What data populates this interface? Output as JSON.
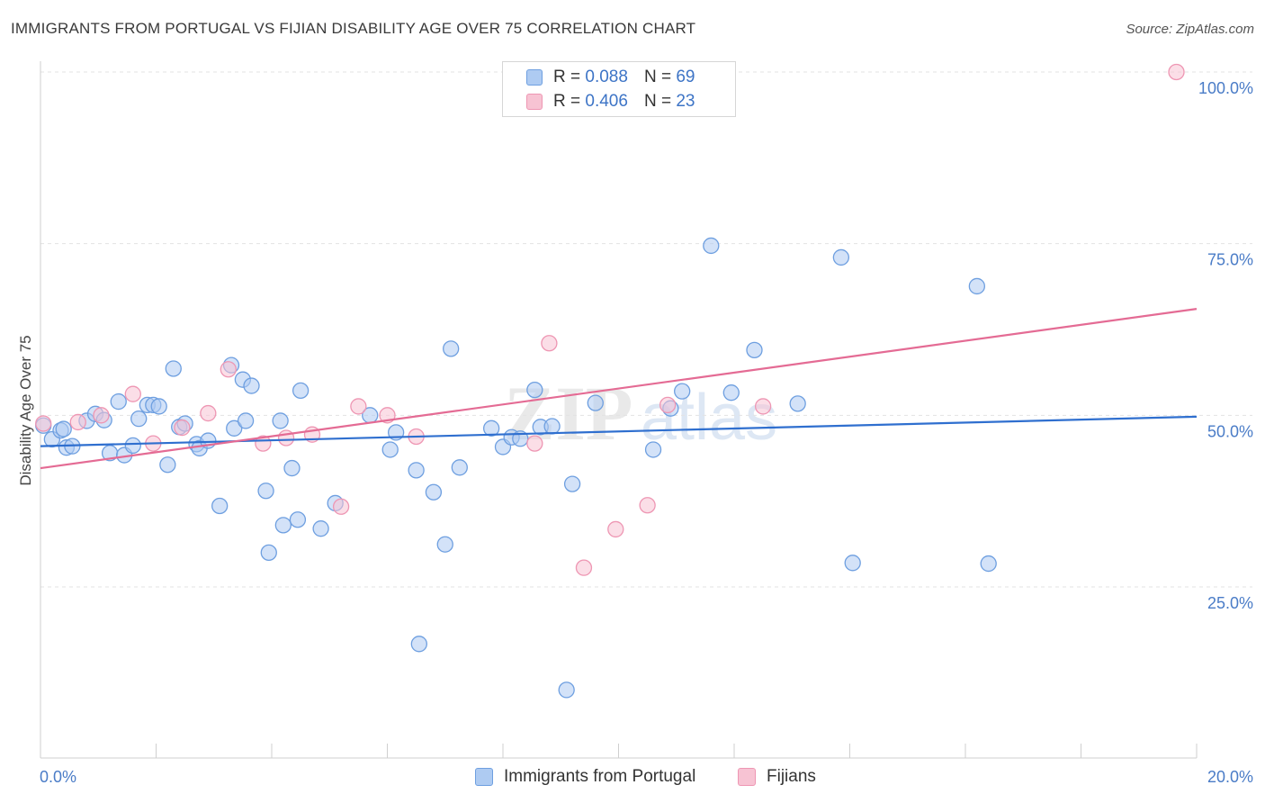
{
  "title": "IMMIGRANTS FROM PORTUGAL VS FIJIAN DISABILITY AGE OVER 75 CORRELATION CHART",
  "source": "Source: ZipAtlas.com",
  "watermark": "ZIPatlas",
  "colors": {
    "blue_fill": "#aecbf2",
    "blue_stroke": "#6e9fe0",
    "blue_line": "#2f6fcf",
    "pink_fill": "#f7c3d3",
    "pink_stroke": "#ee96b3",
    "pink_line": "#e46b94",
    "tick_text": "#4a7cc7",
    "grid": "#e3e3e3"
  },
  "legend": {
    "rows": [
      {
        "r_label": "R =",
        "r_value": "0.088",
        "n_label": "N =",
        "n_value": "69"
      },
      {
        "r_label": "R =",
        "r_value": "0.406",
        "n_label": "N =",
        "n_value": "23"
      }
    ]
  },
  "chart_data": {
    "type": "scatter",
    "title": "IMMIGRANTS FROM PORTUGAL VS FIJIAN DISABILITY AGE OVER 75 CORRELATION CHART",
    "xlabel": "",
    "ylabel": "Disability Age Over 75",
    "xlim": [
      0,
      20
    ],
    "ylim": [
      2,
      102
    ],
    "x_tick_labels": [
      "0.0%",
      "20.0%"
    ],
    "y_ticks": [
      25,
      50,
      75,
      100
    ],
    "y_tick_labels": [
      "25.0%",
      "50.0%",
      "75.0%",
      "100.0%"
    ],
    "grid": "horizontal dashed",
    "legend_position": "top-center",
    "series": [
      {
        "name": "Immigrants from Portugal",
        "trend": {
          "x0": 0,
          "y0": 45.5,
          "x1": 20,
          "y1": 49.8
        },
        "points": [
          [
            0.05,
            48.5
          ],
          [
            0.2,
            46.5
          ],
          [
            0.35,
            47.8
          ],
          [
            0.45,
            45.3
          ],
          [
            0.55,
            45.5
          ],
          [
            0.8,
            49.2
          ],
          [
            0.95,
            50.2
          ],
          [
            1.1,
            49.3
          ],
          [
            1.2,
            44.5
          ],
          [
            1.35,
            52.0
          ],
          [
            1.45,
            44.2
          ],
          [
            1.6,
            45.6
          ],
          [
            1.7,
            49.5
          ],
          [
            1.85,
            51.5
          ],
          [
            1.95,
            51.5
          ],
          [
            2.05,
            51.3
          ],
          [
            2.2,
            42.8
          ],
          [
            2.3,
            56.8
          ],
          [
            2.4,
            48.3
          ],
          [
            2.5,
            48.8
          ],
          [
            2.7,
            45.8
          ],
          [
            2.75,
            45.2
          ],
          [
            2.9,
            46.3
          ],
          [
            3.1,
            36.8
          ],
          [
            3.3,
            57.3
          ],
          [
            3.35,
            48.1
          ],
          [
            3.5,
            55.2
          ],
          [
            3.55,
            49.2
          ],
          [
            3.65,
            54.3
          ],
          [
            3.9,
            39.0
          ],
          [
            3.95,
            30.0
          ],
          [
            4.15,
            49.2
          ],
          [
            4.2,
            34.0
          ],
          [
            4.45,
            34.8
          ],
          [
            4.35,
            42.3
          ],
          [
            4.5,
            53.6
          ],
          [
            4.85,
            33.5
          ],
          [
            5.1,
            37.2
          ],
          [
            5.7,
            50.0
          ],
          [
            6.05,
            45.0
          ],
          [
            6.15,
            47.5
          ],
          [
            6.5,
            42.0
          ],
          [
            6.55,
            16.7
          ],
          [
            6.8,
            38.8
          ],
          [
            7.0,
            31.2
          ],
          [
            7.1,
            59.7
          ],
          [
            7.25,
            42.4
          ],
          [
            7.8,
            48.1
          ],
          [
            8.0,
            45.4
          ],
          [
            8.15,
            46.8
          ],
          [
            8.3,
            46.6
          ],
          [
            8.55,
            53.7
          ],
          [
            8.65,
            48.3
          ],
          [
            8.85,
            48.4
          ],
          [
            9.1,
            10.0
          ],
          [
            9.2,
            40.0
          ],
          [
            9.6,
            51.8
          ],
          [
            10.6,
            45.0
          ],
          [
            10.9,
            51.0
          ],
          [
            11.1,
            53.5
          ],
          [
            11.6,
            74.7
          ],
          [
            11.95,
            53.3
          ],
          [
            12.35,
            59.5
          ],
          [
            13.1,
            51.7
          ],
          [
            13.85,
            73.0
          ],
          [
            14.05,
            28.5
          ],
          [
            16.2,
            68.8
          ],
          [
            16.4,
            28.4
          ],
          [
            0.4,
            48.0
          ]
        ]
      },
      {
        "name": "Fijians",
        "trend": {
          "x0": 0,
          "y0": 42.3,
          "x1": 20,
          "y1": 65.5
        },
        "points": [
          [
            0.05,
            48.8
          ],
          [
            0.65,
            49.0
          ],
          [
            1.05,
            50.0
          ],
          [
            1.6,
            53.1
          ],
          [
            1.95,
            45.9
          ],
          [
            2.45,
            48.2
          ],
          [
            2.9,
            50.3
          ],
          [
            3.25,
            56.7
          ],
          [
            3.85,
            45.9
          ],
          [
            4.25,
            46.7
          ],
          [
            4.7,
            47.2
          ],
          [
            5.2,
            36.7
          ],
          [
            5.5,
            51.3
          ],
          [
            6.0,
            50.0
          ],
          [
            6.5,
            46.9
          ],
          [
            8.55,
            45.9
          ],
          [
            8.8,
            60.5
          ],
          [
            9.4,
            27.8
          ],
          [
            9.95,
            33.4
          ],
          [
            10.5,
            36.9
          ],
          [
            10.85,
            51.5
          ],
          [
            12.5,
            51.3
          ],
          [
            19.65,
            100.0
          ]
        ]
      }
    ]
  },
  "bottom_legend": {
    "items": [
      {
        "label": "Immigrants from Portugal"
      },
      {
        "label": "Fijians"
      }
    ]
  }
}
